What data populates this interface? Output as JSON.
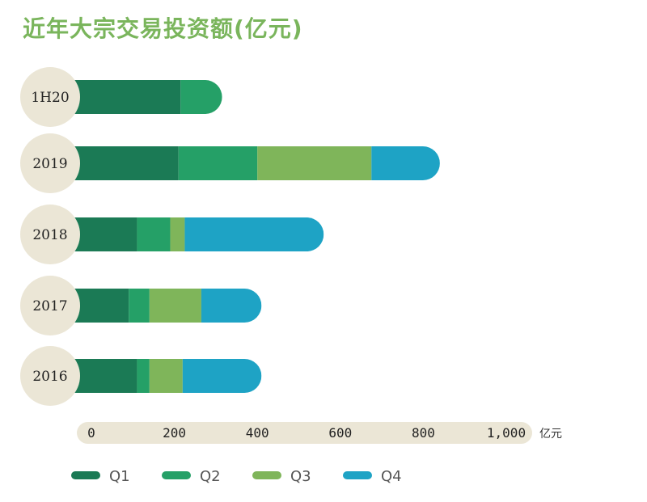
{
  "title": "近年大宗交易投资额(亿元)",
  "chart_data": {
    "type": "bar",
    "orientation": "horizontal",
    "stacked": true,
    "categories": [
      "1H20",
      "2019",
      "2018",
      "2017",
      "2016"
    ],
    "series": [
      {
        "name": "Q1",
        "color": "#1b7a55",
        "values": [
          215,
          210,
          110,
          90,
          110
        ]
      },
      {
        "name": "Q2",
        "color": "#25a067",
        "values": [
          100,
          190,
          80,
          50,
          30
        ]
      },
      {
        "name": "Q3",
        "color": "#7fb55a",
        "values": [
          0,
          275,
          35,
          125,
          80
        ]
      },
      {
        "name": "Q4",
        "color": "#1ea3c5",
        "values": [
          0,
          165,
          335,
          145,
          190
        ]
      }
    ],
    "xticks": [
      "0",
      "200",
      "400",
      "600",
      "800",
      "1,000"
    ],
    "xtick_values": [
      0,
      200,
      400,
      600,
      800,
      1000
    ],
    "xlim": [
      0,
      1000
    ],
    "unit": "亿元",
    "legend_position": "bottom",
    "label_bg": "#ebe6d6"
  }
}
